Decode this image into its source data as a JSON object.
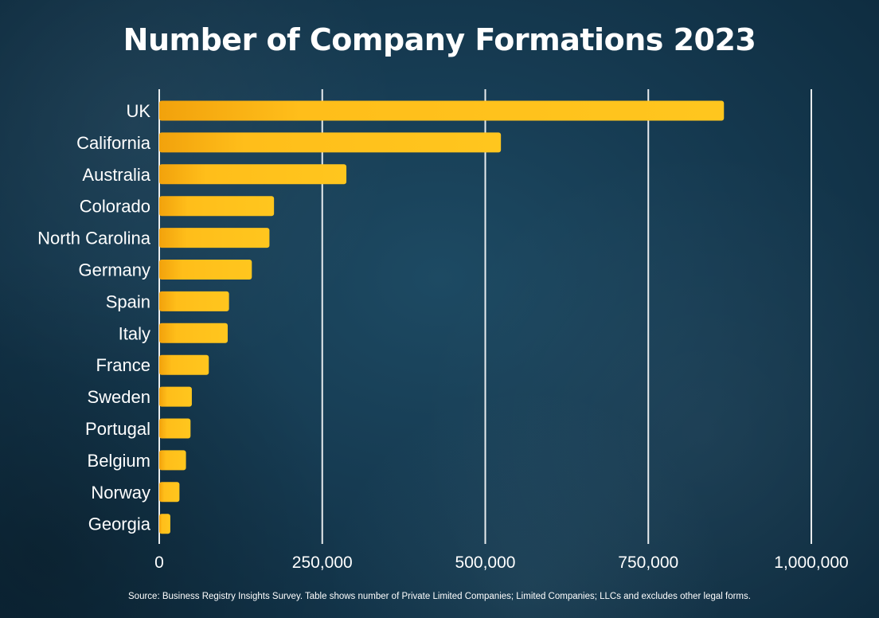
{
  "title": "Number of Company Formations 2023",
  "source": "Source: Business Registry Insights Survey. Table shows number of Private Limited Companies; Limited Companies; LLCs and excludes other legal forms.",
  "colors": {
    "bar": "#ffc21a",
    "bar_dark": "#f0a00a",
    "background": "#163b52",
    "grid": "#ffffff",
    "text": "#ffffff"
  },
  "chart_data": {
    "type": "bar",
    "orientation": "horizontal",
    "categories": [
      "UK",
      "California",
      "Australia",
      "Colorado",
      "North Carolina",
      "Germany",
      "Spain",
      "Italy",
      "France",
      "Sweden",
      "Portugal",
      "Belgium",
      "Norway",
      "Georgia"
    ],
    "values": [
      866000,
      524000,
      287000,
      176000,
      169000,
      142000,
      107000,
      105000,
      76000,
      50000,
      48000,
      41000,
      31000,
      17000
    ],
    "xlim": [
      0,
      1000000
    ],
    "xticks": [
      0,
      250000,
      500000,
      750000,
      1000000
    ],
    "xtick_labels": [
      "0",
      "250,000",
      "500,000",
      "750,000",
      "1,000,000"
    ],
    "grid": true,
    "legend": "none"
  }
}
